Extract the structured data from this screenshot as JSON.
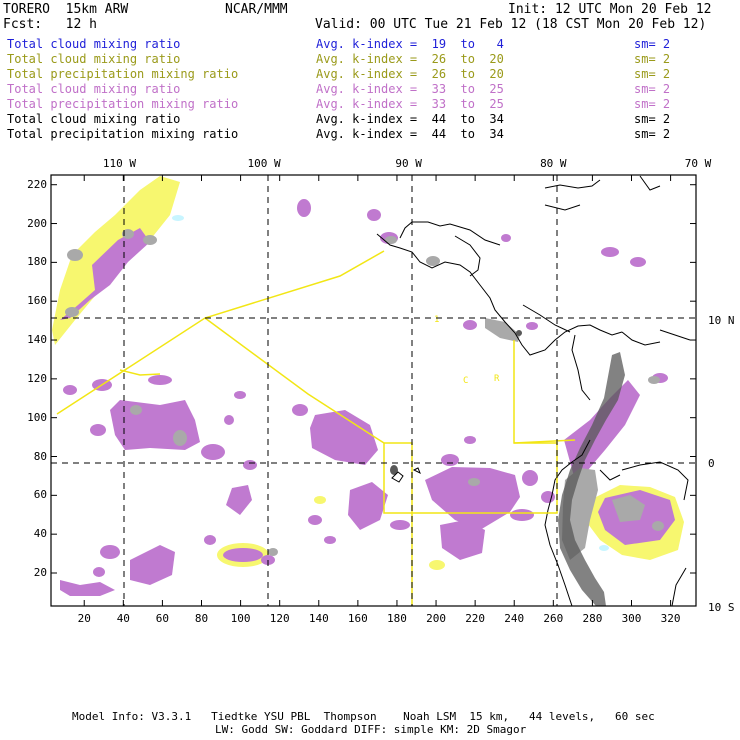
{
  "header": {
    "title_line1": "TORERO  15km ARW",
    "center": "NCAR/MMM",
    "init": "Init: 12 UTC Mon 20 Feb 12",
    "fcst": "Fcst:   12 h",
    "valid": "Valid: 00 UTC Tue 21 Feb 12 (18 CST Mon 20 Feb 12)"
  },
  "legend": [
    {
      "label": "Total cloud mixing ratio",
      "kindex": "Avg. k-index =  19  to   4",
      "sm": "sm= 2",
      "color": "#1f1fd8"
    },
    {
      "label": "Total cloud mixing ratio",
      "kindex": "Avg. k-index =  26  to  20",
      "sm": "sm= 2",
      "color": "#9a9a1a"
    },
    {
      "label": "Total precipitation mixing ratio",
      "kindex": "Avg. k-index =  26  to  20",
      "sm": "sm= 2",
      "color": "#9a9a1a"
    },
    {
      "label": "Total cloud mixing ratio",
      "kindex": "Avg. k-index =  33  to  25",
      "sm": "sm= 2",
      "color": "#c070c8"
    },
    {
      "label": "Total precipitation mixing ratio",
      "kindex": "Avg. k-index =  33  to  25",
      "sm": "sm= 2",
      "color": "#c070c8"
    },
    {
      "label": "Total cloud mixing ratio",
      "kindex": "Avg. k-index =  44  to  34",
      "sm": "sm= 2",
      "color": "#000000"
    },
    {
      "label": "Total precipitation mixing ratio",
      "kindex": "Avg. k-index =  44  to  34",
      "sm": "sm= 2",
      "color": "#000000"
    }
  ],
  "map": {
    "x_ticks": [
      20,
      40,
      60,
      80,
      100,
      120,
      140,
      160,
      180,
      200,
      220,
      240,
      260,
      280,
      300,
      320
    ],
    "y_ticks": [
      20,
      40,
      60,
      80,
      100,
      120,
      140,
      160,
      180,
      200,
      220
    ],
    "x_range": [
      3,
      333
    ],
    "y_range": [
      3,
      225
    ],
    "lon_labels": [
      {
        "text": "110 W",
        "x": 38
      },
      {
        "text": "100 W",
        "x": 112
      },
      {
        "text": "90 W",
        "x": 186
      },
      {
        "text": "80 W",
        "x": 260
      },
      {
        "text": "70 W",
        "x": 334
      }
    ],
    "lat_labels": [
      {
        "text": "10 N",
        "y": 150
      },
      {
        "text": "0",
        "y": 76
      },
      {
        "text": "10 S",
        "y": 2
      }
    ],
    "flight_labels": [
      "1",
      "C",
      "R"
    ],
    "colors": {
      "light_yellow": "#f7f76f",
      "purple": "#c07ad0",
      "gray": "#a9a9a9",
      "dark_gray": "#585858",
      "flight_track": "#f2e615",
      "cyan": "#c8f5ff"
    }
  },
  "footer": {
    "line1": "Model Info: V3.3.1   Tiedtke YSU PBL  Thompson    Noah LSM  15 km,   44 levels,   60 sec",
    "line2": "LW: Godd SW: Goddard DIFF: simple KM: 2D Smagor"
  }
}
